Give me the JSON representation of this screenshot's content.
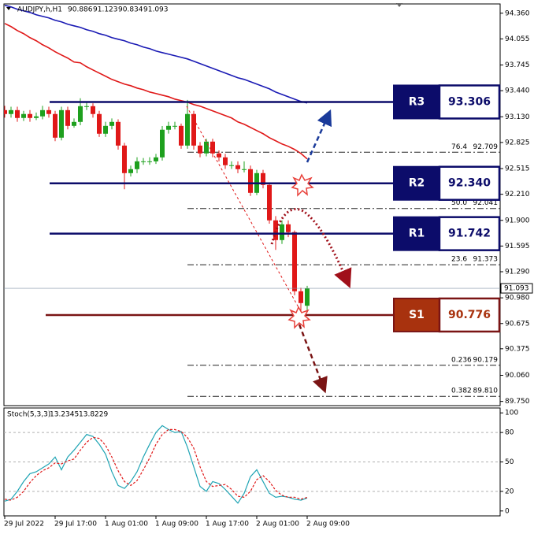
{
  "chart_data": [
    {
      "type": "candlestick",
      "title": "AUDJPY,h,H1",
      "categories": [
        "29 Jul 2022",
        null,
        null,
        null,
        null,
        null,
        null,
        null,
        "29 Jul 17:00",
        null,
        null,
        null,
        null,
        null,
        null,
        null,
        "1 Aug 01:00",
        null,
        null,
        null,
        null,
        null,
        null,
        null,
        "1 Aug 09:00",
        null,
        null,
        null,
        null,
        null,
        null,
        null,
        "1 Aug 17:00",
        null,
        null,
        null,
        null,
        null,
        null,
        null,
        "2 Aug 01:00",
        null,
        null,
        null,
        null,
        null,
        null,
        null,
        "2 Aug 09:00"
      ],
      "open": [
        93.209,
        93.163,
        93.209,
        93.116,
        93.163,
        93.116,
        93.135,
        93.209,
        93.163,
        92.882,
        93.209,
        93.022,
        93.069,
        93.256,
        93.256,
        93.163,
        92.929,
        93.022,
        93.069,
        92.788,
        92.461,
        92.508,
        92.601,
        92.601,
        92.601,
        92.648,
        92.976,
        93.022,
        93.022,
        92.788,
        93.163,
        92.788,
        92.695,
        92.835,
        92.695,
        92.648,
        92.555,
        92.555,
        92.508,
        92.508,
        92.227,
        92.461,
        92.321,
        91.9,
        91.666,
        91.853,
        91.76,
        91.058,
        90.886
      ],
      "high": [
        93.26,
        93.25,
        93.25,
        93.2,
        93.21,
        93.18,
        93.26,
        93.25,
        93.2,
        93.25,
        93.25,
        93.11,
        93.35,
        93.3,
        93.29,
        93.2,
        93.07,
        93.11,
        93.1,
        92.82,
        92.55,
        92.65,
        92.64,
        92.65,
        92.69,
        93.02,
        93.07,
        93.07,
        93.05,
        93.33,
        93.2,
        92.83,
        92.87,
        92.87,
        92.73,
        92.69,
        92.6,
        92.6,
        92.6,
        92.55,
        92.5,
        92.5,
        92.35,
        91.95,
        91.9,
        91.9,
        91.78,
        91.1,
        91.123
      ],
      "low": [
        93.12,
        93.12,
        93.07,
        93.08,
        93.07,
        93.09,
        93.1,
        93.12,
        92.84,
        92.85,
        92.98,
        93.0,
        93.03,
        93.21,
        93.12,
        92.89,
        92.89,
        92.98,
        92.74,
        92.27,
        92.42,
        92.46,
        92.56,
        92.56,
        92.57,
        92.61,
        92.93,
        92.98,
        92.75,
        92.75,
        92.74,
        92.65,
        92.66,
        92.65,
        92.6,
        92.51,
        92.51,
        92.46,
        92.47,
        92.19,
        92.2,
        92.28,
        91.86,
        91.55,
        91.62,
        91.7,
        91.01,
        90.78,
        90.834
      ],
      "close": [
        93.163,
        93.209,
        93.116,
        93.163,
        93.116,
        93.135,
        93.209,
        93.163,
        92.882,
        93.209,
        93.022,
        93.069,
        93.256,
        93.256,
        93.163,
        92.929,
        93.022,
        93.069,
        92.788,
        92.461,
        92.508,
        92.601,
        92.601,
        92.601,
        92.648,
        92.976,
        93.022,
        93.022,
        92.788,
        93.163,
        92.788,
        92.695,
        92.835,
        92.695,
        92.648,
        92.555,
        92.555,
        92.508,
        92.508,
        92.227,
        92.461,
        92.321,
        91.9,
        91.666,
        91.853,
        91.76,
        91.058,
        90.918,
        91.093
      ],
      "up_color": "#1ea01e",
      "down_color": "#e01818",
      "lines": [
        {
          "color": "#e01818",
          "values": [
            94.238,
            94.201,
            94.154,
            94.117,
            94.07,
            94.033,
            93.986,
            93.948,
            93.902,
            93.864,
            93.827,
            93.78,
            93.771,
            93.724,
            93.686,
            93.649,
            93.612,
            93.574,
            93.546,
            93.518,
            93.499,
            93.471,
            93.452,
            93.424,
            93.406,
            93.387,
            93.368,
            93.34,
            93.322,
            93.303,
            93.275,
            93.256,
            93.228,
            93.2,
            93.172,
            93.144,
            93.116,
            93.069,
            93.041,
            93.004,
            92.966,
            92.929,
            92.882,
            92.845,
            92.807,
            92.779,
            92.742,
            92.695,
            92.629
          ]
        },
        {
          "color": "#1a1ab4",
          "values": [
            94.454,
            94.435,
            94.407,
            94.388,
            94.369,
            94.341,
            94.323,
            94.304,
            94.276,
            94.257,
            94.229,
            94.21,
            94.192,
            94.164,
            94.145,
            94.117,
            94.098,
            94.07,
            94.051,
            94.033,
            94.005,
            93.986,
            93.958,
            93.939,
            93.911,
            93.892,
            93.874,
            93.855,
            93.836,
            93.817,
            93.789,
            93.761,
            93.733,
            93.705,
            93.677,
            93.649,
            93.621,
            93.593,
            93.574,
            93.546,
            93.518,
            93.49,
            93.462,
            93.424,
            93.396,
            93.368,
            93.34,
            93.312,
            93.294
          ]
        }
      ],
      "ylim": [
        89.7,
        94.47
      ],
      "yticks": [
        {
          "value": 94.36,
          "label": "94.360"
        },
        94.055,
        93.745,
        {
          "value": 93.44,
          "label": "93.440"
        },
        {
          "value": 93.13,
          "label": "93.130"
        },
        92.825,
        92.515,
        {
          "value": 92.21,
          "label": "92.210"
        },
        {
          "value": 91.9,
          "label": "91.900"
        },
        91.595,
        {
          "value": 91.29,
          "label": "91.290"
        },
        {
          "value": 90.98,
          "label": "90.980"
        },
        90.675,
        90.375,
        {
          "value": 90.06,
          "label": "90.060"
        },
        {
          "value": 89.75,
          "label": "89.750"
        }
      ],
      "levels": [
        {
          "name": "R3",
          "value": 93.306,
          "label": "93.306",
          "color": "#0c0c6a",
          "text_color": "#0c0c6a"
        },
        {
          "name": "R2",
          "value": 92.34,
          "label": "92.340",
          "color": "#0c0c6a",
          "text_color": "#0c0c6a"
        },
        {
          "name": "R1",
          "value": 91.742,
          "label": "91.742",
          "color": "#0c0c6a",
          "text_color": "#0c0c6a"
        },
        {
          "name": "S1",
          "value": 90.776,
          "label": "90.776",
          "color": "#7a1414",
          "fill": "#a8320e",
          "text_color": "#a8320e"
        }
      ],
      "fib": {
        "labels": [
          "76.4",
          "50.0",
          "23.6",
          "0.236",
          "0.382"
        ],
        "values": [
          92.709,
          92.041,
          91.373,
          90.179,
          89.81
        ],
        "value_labels": [
          "92.709",
          "92.041",
          "91.373",
          "90.179",
          "89.810"
        ]
      }
    },
    {
      "type": "stochastic",
      "title": "Stoch(5,3,3)",
      "ylim": [
        -5,
        105
      ],
      "yticks": [
        100,
        80,
        50,
        20,
        0
      ],
      "dashed_levels": [
        80,
        50,
        20
      ],
      "series": [
        {
          "color": "#1fa4b4",
          "values": [
            10,
            12,
            20,
            30,
            38,
            40,
            44,
            48,
            55,
            42,
            55,
            62,
            70,
            78,
            76,
            68,
            58,
            40,
            26,
            23,
            30,
            40,
            55,
            68,
            80,
            87,
            83,
            80,
            81,
            65,
            45,
            25,
            20,
            30,
            28,
            22,
            15,
            8,
            18,
            35,
            42,
            30,
            18,
            14,
            15,
            14,
            12,
            11,
            13.2345
          ]
        },
        {
          "color": "#e01818",
          "values": [
            12,
            11,
            14,
            20,
            29,
            36,
            41,
            44,
            49,
            48,
            51,
            53,
            62,
            70,
            75,
            74,
            67,
            55,
            41,
            30,
            26,
            31,
            42,
            54,
            68,
            78,
            83,
            83,
            81,
            75,
            64,
            45,
            30,
            25,
            26,
            27,
            22,
            15,
            14,
            20,
            32,
            36,
            30,
            21,
            16,
            14,
            14,
            12,
            13.8229
          ]
        }
      ]
    }
  ]
}
